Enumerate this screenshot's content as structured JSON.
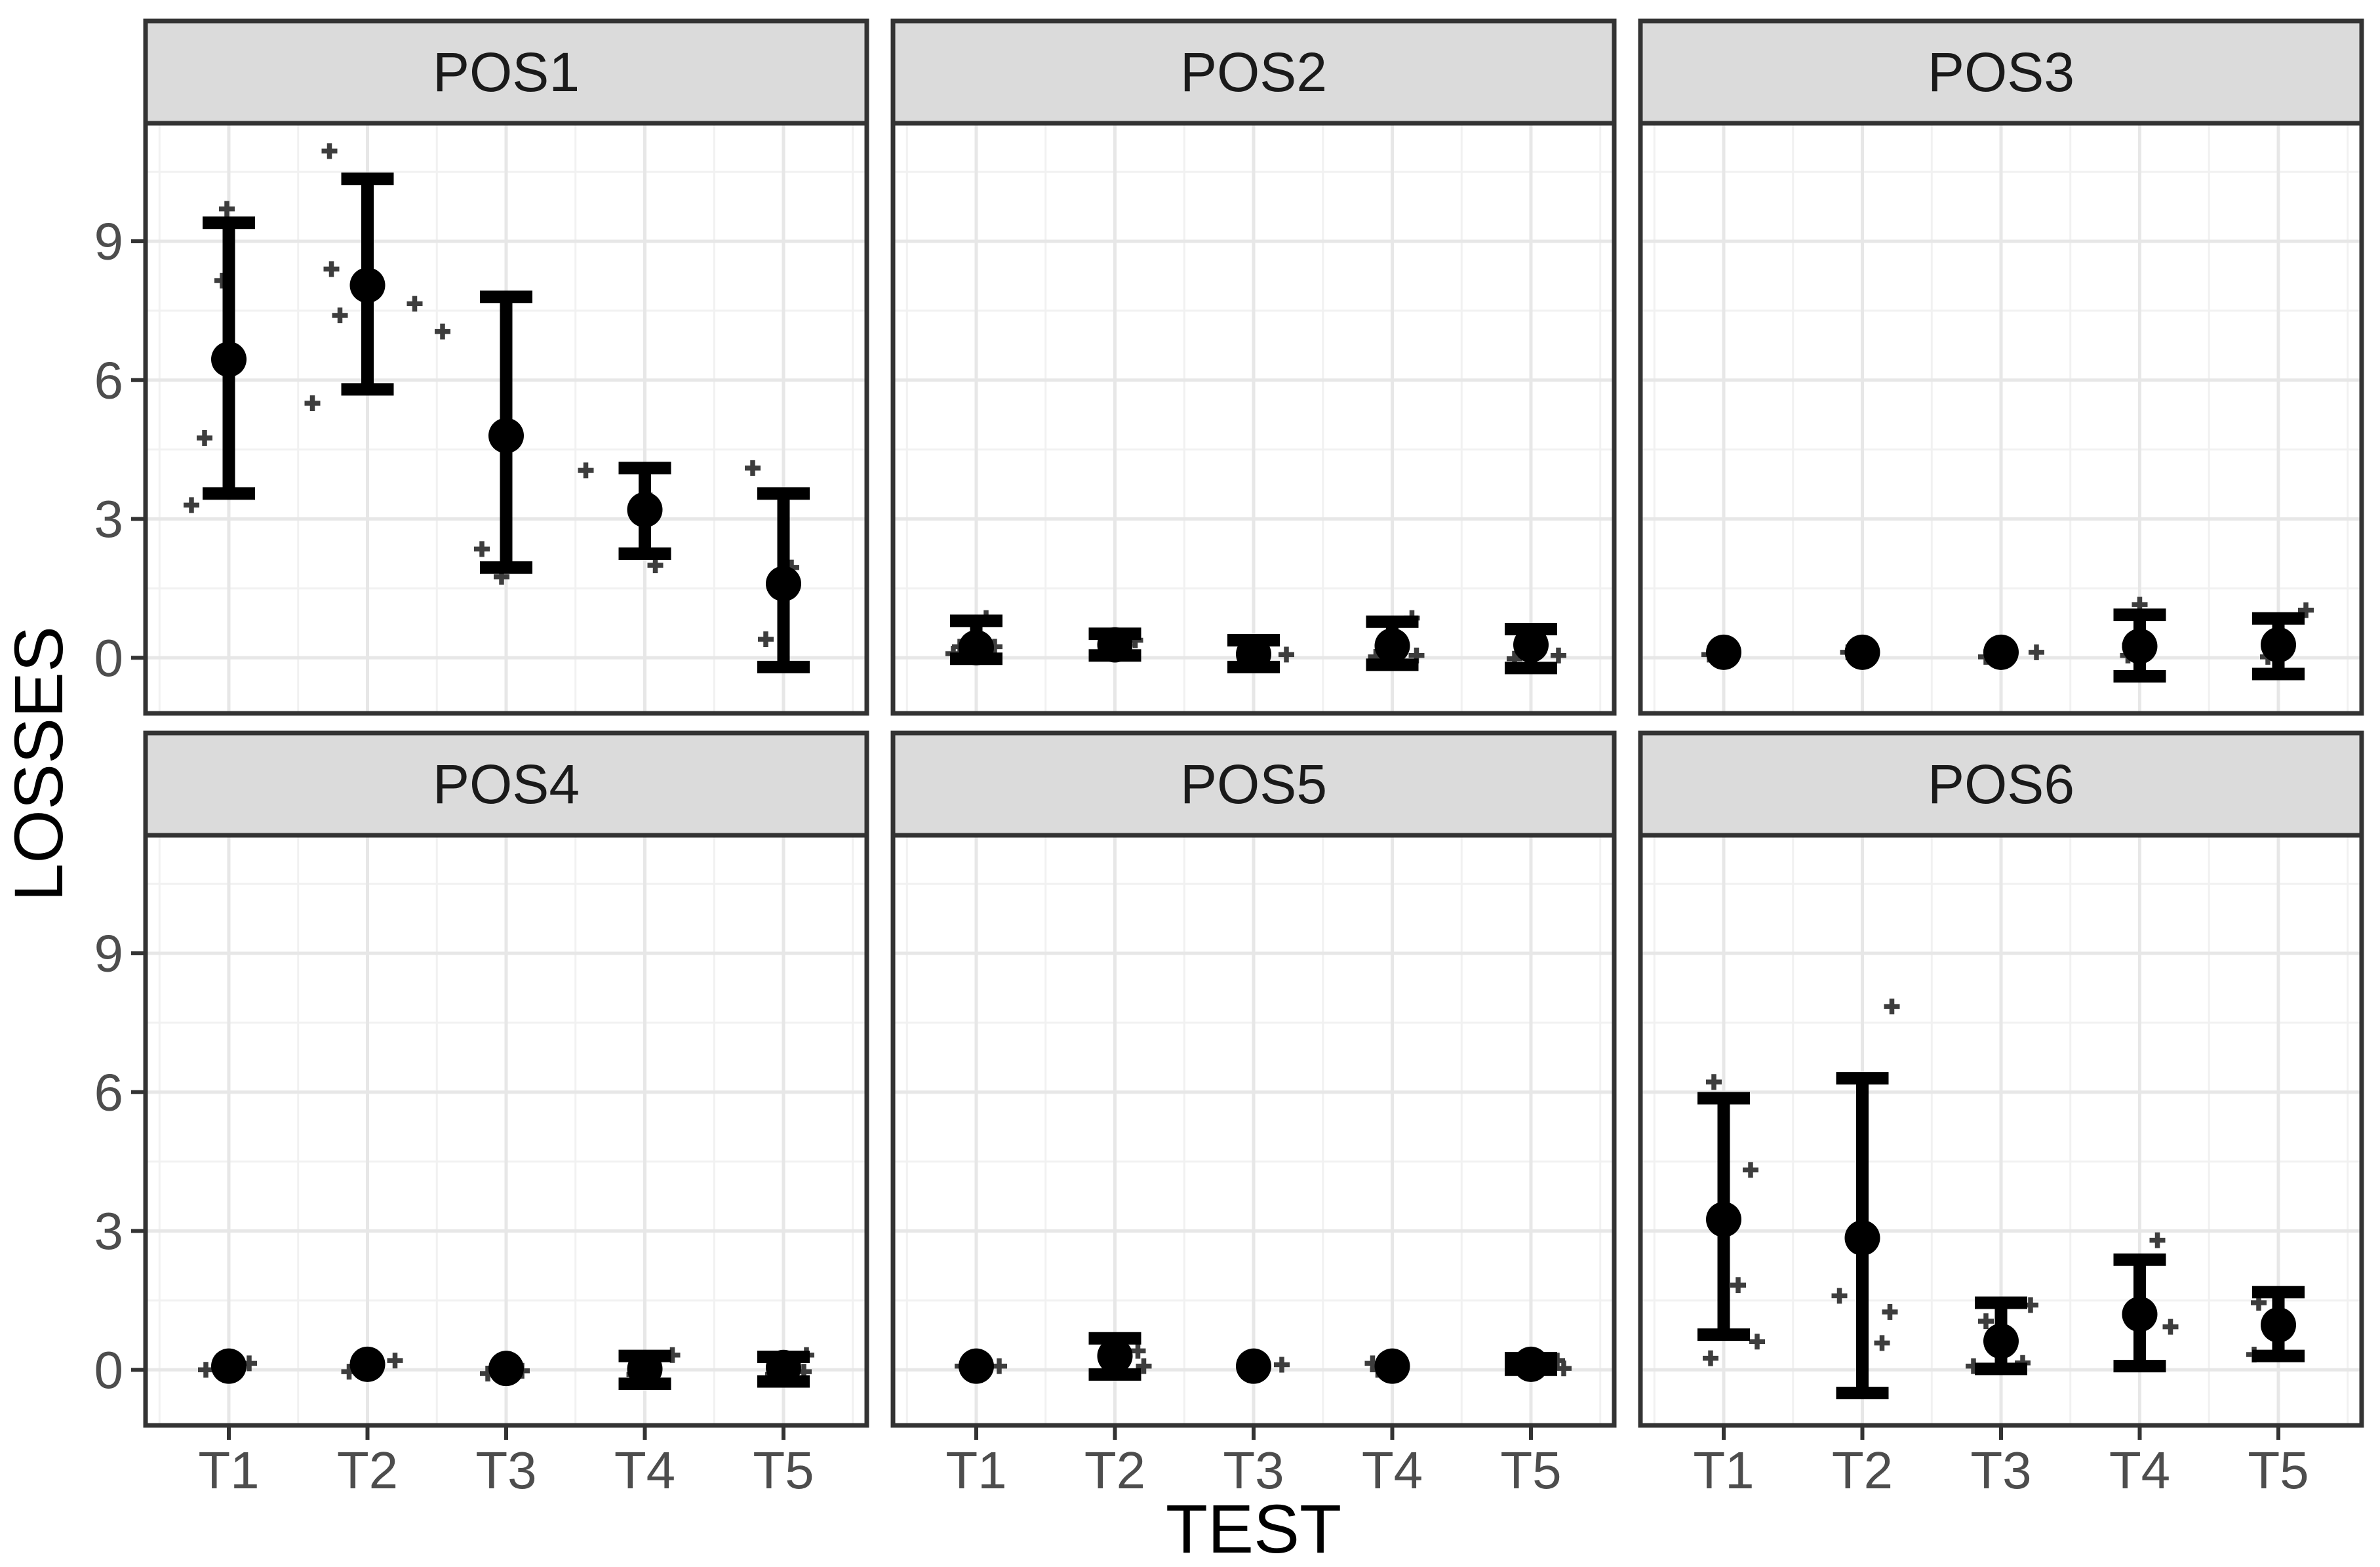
{
  "chart_data": {
    "type": "scatter",
    "subtype": "faceted-pointrange-with-jitter",
    "title": "",
    "xlabel": "TEST",
    "ylabel": "LOSSES",
    "categories": [
      "T1",
      "T2",
      "T3",
      "T4",
      "T5"
    ],
    "yticks": [
      0,
      3,
      6,
      9
    ],
    "yticks_minor": [
      1.5,
      4.5,
      7.5,
      10.5
    ],
    "ylim": [
      -1.2,
      11.55
    ],
    "grid": true,
    "legend": "none",
    "facet_layout": {
      "rows": 2,
      "cols": 3
    },
    "colors": {
      "point": "#000000",
      "jitter_point": "#3d3d3d",
      "strip_fill": "#dbdbdb",
      "strip_border": "#333333",
      "panel_border": "#333333",
      "panel_background": "#ffffff",
      "grid_major": "#e7e7e7",
      "grid_minor": "#f1f1f1",
      "tick": "#333333",
      "tick_label": "#4d4d4d",
      "axis_title": "#000000",
      "strip_label": "#1a1a1a"
    },
    "facets": [
      {
        "label": "POS1",
        "means": [
          6.45,
          8.05,
          4.8,
          3.2,
          1.6
        ],
        "ci_low": [
          3.55,
          5.8,
          1.95,
          2.25,
          -0.2
        ],
        "ci_high": [
          9.4,
          10.35,
          7.8,
          4.1,
          3.55
        ],
        "points": [
          {
            "t": 1,
            "dx": -3,
            "y": 9.7
          },
          {
            "t": 1,
            "dx": -10,
            "y": 8.15
          },
          {
            "t": 1,
            "dx": -37,
            "y": 4.75
          },
          {
            "t": 1,
            "dx": -57,
            "y": 3.3
          },
          {
            "t": 2,
            "dx": -58,
            "y": 10.95
          },
          {
            "t": 2,
            "dx": -55,
            "y": 8.4
          },
          {
            "t": 2,
            "dx": 72,
            "y": 7.65
          },
          {
            "t": 2,
            "dx": -42,
            "y": 7.4
          },
          {
            "t": 2,
            "dx": -84,
            "y": 5.5
          },
          {
            "t": 3,
            "dx": -97,
            "y": 7.05
          },
          {
            "t": 3,
            "dx": -37,
            "y": 2.35
          },
          {
            "t": 3,
            "dx": -7,
            "y": 1.75
          },
          {
            "t": 4,
            "dx": -90,
            "y": 4.05
          },
          {
            "t": 4,
            "dx": 8,
            "y": 3.4
          },
          {
            "t": 4,
            "dx": 16,
            "y": 2.0
          },
          {
            "t": 5,
            "dx": -47,
            "y": 4.1
          },
          {
            "t": 5,
            "dx": 12,
            "y": 1.95
          },
          {
            "t": 5,
            "dx": -27,
            "y": 0.4
          }
        ]
      },
      {
        "label": "POS2",
        "means": [
          0.22,
          0.28,
          0.08,
          0.26,
          0.28
        ],
        "ci_low": [
          -0.02,
          0.05,
          -0.2,
          -0.15,
          -0.22
        ],
        "ci_high": [
          0.8,
          0.52,
          0.38,
          0.78,
          0.62
        ],
        "points": [
          {
            "t": 1,
            "dx": -35,
            "y": 0.09
          },
          {
            "t": 1,
            "dx": -25,
            "y": 0.24
          },
          {
            "t": 1,
            "dx": 28,
            "y": 0.24
          },
          {
            "t": 1,
            "dx": 15,
            "y": 0.86
          },
          {
            "t": 2,
            "dx": 31,
            "y": 0.38
          },
          {
            "t": 3,
            "dx": 50,
            "y": 0.07
          },
          {
            "t": 4,
            "dx": -25,
            "y": 0.02
          },
          {
            "t": 4,
            "dx": 37,
            "y": 0.05
          },
          {
            "t": 4,
            "dx": 30,
            "y": 0.86
          },
          {
            "t": 5,
            "dx": -25,
            "y": -0.02
          },
          {
            "t": 5,
            "dx": 42,
            "y": 0.05
          }
        ]
      },
      {
        "label": "POS3",
        "means": [
          0.12,
          0.12,
          0.12,
          0.25,
          0.28
        ],
        "ci_low": [
          null,
          null,
          null,
          -0.4,
          -0.35
        ],
        "ci_high": [
          null,
          null,
          null,
          0.93,
          0.85
        ],
        "points": [
          {
            "t": 1,
            "dx": -22,
            "y": 0.07
          },
          {
            "t": 2,
            "dx": -22,
            "y": 0.12
          },
          {
            "t": 3,
            "dx": -23,
            "y": 0.02
          },
          {
            "t": 3,
            "dx": 54,
            "y": 0.12
          },
          {
            "t": 4,
            "dx": 0,
            "y": 1.15
          },
          {
            "t": 4,
            "dx": -15,
            "y": 0.27
          },
          {
            "t": 4,
            "dx": -18,
            "y": 0.05
          },
          {
            "t": 5,
            "dx": 42,
            "y": 1.03
          },
          {
            "t": 5,
            "dx": -16,
            "y": 0.02
          }
        ]
      },
      {
        "label": "POS4",
        "means": [
          0.08,
          0.12,
          0.03,
          0.02,
          0.05
        ],
        "ci_low": [
          null,
          null,
          null,
          -0.3,
          -0.25
        ],
        "ci_high": [
          null,
          null,
          null,
          0.3,
          0.28
        ],
        "points": [
          {
            "t": 1,
            "dx": 31,
            "y": 0.14
          },
          {
            "t": 1,
            "dx": -35,
            "y": 0.0
          },
          {
            "t": 2,
            "dx": 42,
            "y": 0.2
          },
          {
            "t": 2,
            "dx": -28,
            "y": -0.04
          },
          {
            "t": 3,
            "dx": -28,
            "y": -0.08
          },
          {
            "t": 3,
            "dx": 24,
            "y": -0.02
          },
          {
            "t": 4,
            "dx": 42,
            "y": 0.32
          },
          {
            "t": 4,
            "dx": -16,
            "y": -0.1
          },
          {
            "t": 5,
            "dx": 35,
            "y": 0.32
          },
          {
            "t": 5,
            "dx": 31,
            "y": -0.04
          },
          {
            "t": 5,
            "dx": -16,
            "y": -0.1
          }
        ]
      },
      {
        "label": "POS5",
        "means": [
          0.08,
          0.3,
          0.08,
          0.08,
          0.12
        ],
        "ci_low": [
          null,
          -0.1,
          null,
          null,
          0.0
        ],
        "ci_high": [
          null,
          0.68,
          null,
          null,
          0.25
        ],
        "points": [
          {
            "t": 1,
            "dx": -21,
            "y": 0.08
          },
          {
            "t": 1,
            "dx": 35,
            "y": 0.08
          },
          {
            "t": 2,
            "dx": 35,
            "y": 0.41
          },
          {
            "t": 2,
            "dx": 44,
            "y": 0.08
          },
          {
            "t": 3,
            "dx": 43,
            "y": 0.11
          },
          {
            "t": 4,
            "dx": -30,
            "y": 0.14
          },
          {
            "t": 4,
            "dx": -22,
            "y": 0.0
          },
          {
            "t": 5,
            "dx": 40,
            "y": 0.2
          },
          {
            "t": 5,
            "dx": 50,
            "y": 0.03
          }
        ]
      },
      {
        "label": "POS6",
        "means": [
          3.25,
          2.85,
          0.62,
          1.2,
          0.97
        ],
        "ci_low": [
          0.76,
          -0.5,
          0.02,
          0.08,
          0.3
        ],
        "ci_high": [
          5.87,
          6.3,
          1.45,
          2.38,
          1.68
        ],
        "points": [
          {
            "t": 1,
            "dx": -15,
            "y": 6.22
          },
          {
            "t": 1,
            "dx": 41,
            "y": 4.32
          },
          {
            "t": 1,
            "dx": 22,
            "y": 1.83
          },
          {
            "t": 1,
            "dx": 51,
            "y": 0.61
          },
          {
            "t": 1,
            "dx": -20,
            "y": 0.25
          },
          {
            "t": 2,
            "dx": 45,
            "y": 7.85
          },
          {
            "t": 2,
            "dx": -35,
            "y": 1.6
          },
          {
            "t": 2,
            "dx": 42,
            "y": 1.25
          },
          {
            "t": 2,
            "dx": 30,
            "y": 0.58
          },
          {
            "t": 3,
            "dx": 45,
            "y": 1.4
          },
          {
            "t": 3,
            "dx": -23,
            "y": 1.05
          },
          {
            "t": 3,
            "dx": -42,
            "y": 0.08
          },
          {
            "t": 3,
            "dx": 33,
            "y": 0.15
          },
          {
            "t": 4,
            "dx": 27,
            "y": 2.8
          },
          {
            "t": 4,
            "dx": 47,
            "y": 0.93
          },
          {
            "t": 5,
            "dx": -30,
            "y": 1.45
          },
          {
            "t": 5,
            "dx": -37,
            "y": 0.33
          }
        ]
      }
    ]
  }
}
